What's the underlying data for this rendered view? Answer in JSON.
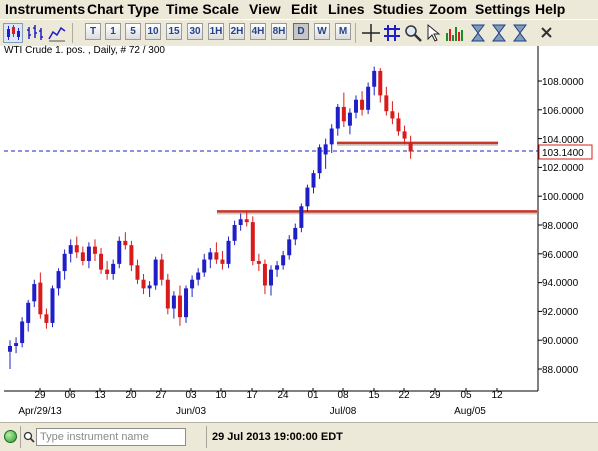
{
  "menu": [
    "Instruments",
    "Chart Type",
    "Time Scale",
    "View",
    "Edit",
    "Lines",
    "Studies",
    "Zoom",
    "Settings",
    "Help"
  ],
  "toolbar": {
    "timeframes": [
      "T",
      "1",
      "5",
      "10",
      "15",
      "30",
      "1H",
      "2H",
      "4H",
      "8H",
      "D",
      "W",
      "M"
    ],
    "active_timeframe": "D"
  },
  "chart": {
    "title": "WTI Crude 1. pos. , Daily, # 72 / 300",
    "price_tag": "103.1400",
    "y_ticks": [
      "108.0000",
      "106.0000",
      "104.0000",
      "102.0000",
      "100.0000",
      "98.0000",
      "96.0000",
      "94.0000",
      "92.0000",
      "90.0000",
      "88.0000"
    ],
    "x_day_ticks": [
      "29",
      "06",
      "13",
      "20",
      "27",
      "03",
      "10",
      "17",
      "24",
      "01",
      "08",
      "15",
      "22",
      "29",
      "05",
      "12"
    ],
    "x_month_labels": [
      "Apr/29/13",
      "Jun/03",
      "Jul/08",
      "Aug/05"
    ],
    "colors": {
      "up": "#1f1fc8",
      "down": "#d81c1c",
      "support_line": "#c8382a",
      "price_line": "#1f1fc8",
      "tag_border": "#d81c1c"
    }
  },
  "chart_data": {
    "type": "candlestick",
    "title": "WTI Crude 1. pos. , Daily, # 72 / 300",
    "ylim": [
      87.2,
      109.8
    ],
    "last_price": 103.14,
    "horizontal_lines": [
      {
        "price": 103.7,
        "from": "Jul/08",
        "to": "Aug/05"
      },
      {
        "price": 98.95,
        "from": "Jun/10",
        "to": "Aug/12"
      }
    ],
    "candles": [
      [
        89.2,
        90.0,
        88.0,
        89.6
      ],
      [
        89.6,
        90.2,
        89.1,
        89.8
      ],
      [
        89.8,
        91.6,
        89.5,
        91.3
      ],
      [
        91.2,
        92.8,
        90.6,
        92.6
      ],
      [
        92.7,
        94.2,
        92.3,
        93.9
      ],
      [
        94.0,
        94.7,
        91.5,
        91.8
      ],
      [
        91.8,
        92.2,
        90.8,
        91.2
      ],
      [
        91.2,
        93.8,
        90.9,
        93.6
      ],
      [
        93.6,
        95.0,
        93.1,
        94.8
      ],
      [
        94.8,
        96.3,
        94.2,
        96.0
      ],
      [
        96.0,
        97.0,
        95.4,
        96.6
      ],
      [
        96.6,
        97.2,
        95.7,
        96.1
      ],
      [
        96.1,
        96.5,
        95.2,
        95.5
      ],
      [
        95.5,
        96.8,
        95.0,
        96.5
      ],
      [
        96.5,
        97.0,
        95.5,
        96.0
      ],
      [
        96.0,
        96.4,
        94.6,
        94.9
      ],
      [
        94.9,
        95.5,
        94.2,
        94.6
      ],
      [
        94.6,
        95.6,
        94.2,
        95.3
      ],
      [
        95.3,
        97.2,
        95.0,
        96.9
      ],
      [
        96.9,
        97.5,
        96.3,
        96.6
      ],
      [
        96.6,
        96.9,
        94.8,
        95.2
      ],
      [
        95.2,
        95.6,
        93.9,
        94.2
      ],
      [
        94.2,
        94.6,
        93.2,
        93.6
      ],
      [
        93.6,
        94.1,
        93.0,
        93.8
      ],
      [
        93.8,
        95.8,
        93.5,
        95.6
      ],
      [
        95.6,
        96.0,
        93.8,
        94.2
      ],
      [
        94.2,
        94.6,
        91.8,
        92.2
      ],
      [
        92.2,
        93.4,
        91.5,
        93.1
      ],
      [
        93.1,
        93.8,
        91.0,
        91.6
      ],
      [
        91.6,
        93.8,
        91.2,
        93.6
      ],
      [
        93.6,
        94.5,
        93.0,
        94.2
      ],
      [
        94.2,
        95.0,
        93.8,
        94.7
      ],
      [
        94.7,
        96.0,
        94.4,
        95.6
      ],
      [
        95.6,
        96.4,
        95.0,
        96.1
      ],
      [
        96.1,
        96.8,
        95.3,
        95.6
      ],
      [
        95.6,
        96.2,
        94.9,
        95.3
      ],
      [
        95.3,
        97.2,
        95.0,
        96.9
      ],
      [
        96.9,
        98.3,
        96.6,
        98.0
      ],
      [
        98.0,
        98.8,
        97.6,
        98.4
      ],
      [
        98.4,
        99.0,
        97.9,
        98.2
      ],
      [
        98.2,
        98.6,
        95.2,
        95.5
      ],
      [
        95.5,
        96.0,
        94.8,
        95.3
      ],
      [
        95.3,
        95.6,
        93.2,
        93.8
      ],
      [
        93.8,
        95.2,
        93.1,
        94.9
      ],
      [
        94.9,
        95.5,
        94.4,
        95.2
      ],
      [
        95.2,
        96.2,
        94.9,
        95.9
      ],
      [
        95.9,
        97.3,
        95.6,
        97.0
      ],
      [
        97.0,
        98.1,
        96.6,
        97.8
      ],
      [
        97.8,
        99.5,
        97.5,
        99.3
      ],
      [
        99.3,
        100.8,
        98.9,
        100.6
      ],
      [
        100.6,
        101.8,
        100.2,
        101.6
      ],
      [
        101.6,
        103.6,
        101.2,
        103.4
      ],
      [
        102.9,
        104.0,
        101.9,
        103.6
      ],
      [
        103.6,
        105.0,
        103.0,
        104.7
      ],
      [
        104.7,
        106.4,
        104.2,
        106.2
      ],
      [
        106.2,
        107.2,
        104.8,
        105.2
      ],
      [
        104.9,
        106.1,
        104.3,
        105.8
      ],
      [
        105.8,
        107.0,
        105.4,
        106.7
      ],
      [
        106.7,
        107.3,
        105.6,
        106.0
      ],
      [
        106.0,
        107.9,
        105.7,
        107.6
      ],
      [
        107.6,
        109.0,
        107.0,
        108.7
      ],
      [
        108.7,
        108.9,
        106.5,
        107.0
      ],
      [
        107.0,
        107.6,
        105.6,
        105.9
      ],
      [
        105.9,
        106.6,
        105.0,
        105.4
      ],
      [
        105.4,
        105.8,
        104.2,
        104.5
      ],
      [
        104.5,
        104.9,
        103.6,
        104.0
      ],
      [
        103.7,
        104.2,
        102.6,
        103.1
      ]
    ]
  },
  "statusbar": {
    "search_placeholder": "Type instrument name",
    "datetime": "29 Jul 2013 19:00:00 EDT"
  }
}
